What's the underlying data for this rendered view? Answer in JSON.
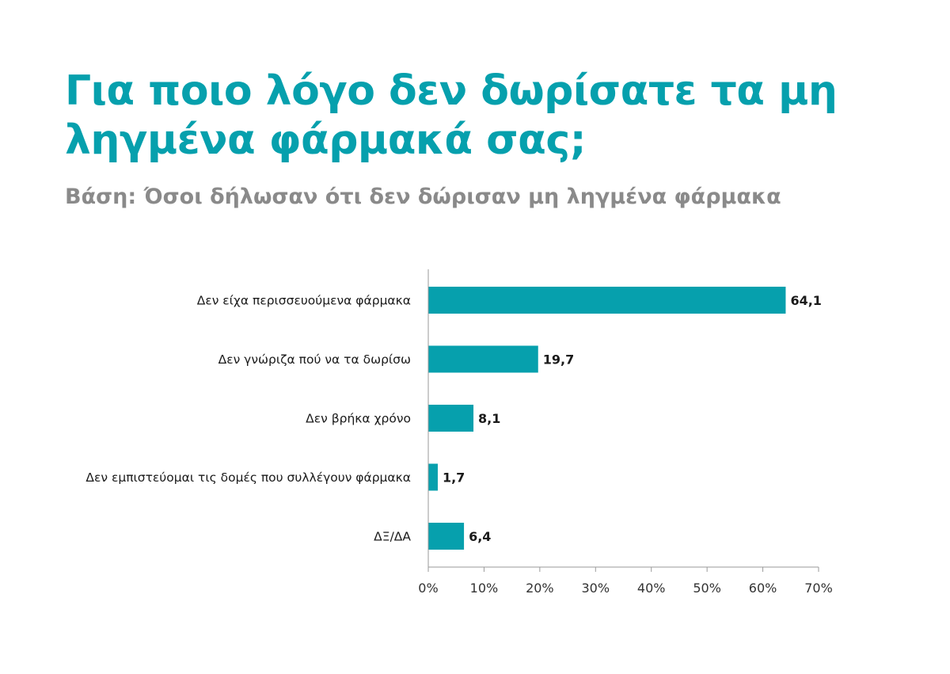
{
  "chart_data": {
    "type": "bar",
    "orientation": "horizontal",
    "title": "Για ποιο λόγο δεν δωρίσατε τα μη ληγμένα φάρμακά σας;",
    "subtitle": "Βάση: Όσοι δήλωσαν ότι δεν δώρισαν μη ληγμένα φάρμακα",
    "categories": [
      "Δεν είχα περισσευούμενα φάρμακα",
      "Δεν γνώριζα πού να τα δωρίσω",
      "Δεν βρήκα χρόνο",
      "Δεν εμπιστεύομαι τις δομές που συλλέγουν φάρμακα",
      "ΔΞ/ΔΑ"
    ],
    "values": [
      64.1,
      19.7,
      8.1,
      1.7,
      6.4
    ],
    "value_labels": [
      "64,1",
      "19,7",
      "8,1",
      "1,7",
      "6,4"
    ],
    "xlim": [
      0,
      70
    ],
    "x_ticks": [
      0,
      10,
      20,
      30,
      40,
      50,
      60,
      70
    ],
    "x_tick_labels": [
      "0%",
      "10%",
      "20%",
      "30%",
      "40%",
      "50%",
      "60%",
      "70%"
    ],
    "xlabel": "",
    "ylabel": "",
    "grid": false,
    "legend": "none",
    "bar_color": "#06a0ad",
    "title_color": "#06a0ad",
    "subtitle_color": "#8a8a8a"
  }
}
